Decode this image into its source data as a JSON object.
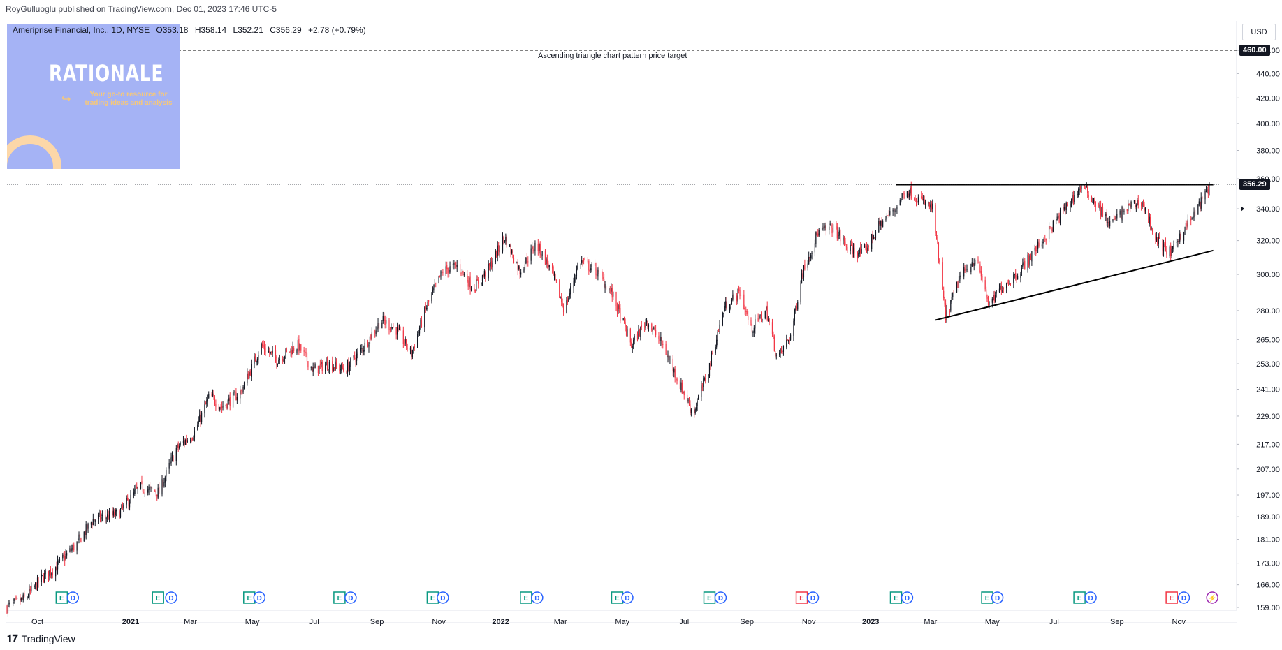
{
  "header": {
    "published_line": "RoyGulluoglu published on TradingView.com, Dec 01, 2023 17:46 UTC-5"
  },
  "legend": {
    "symbol": "Ameriprise Financial, Inc., 1D, NYSE",
    "open": "O353.18",
    "high": "H358.14",
    "low": "L352.21",
    "close": "C356.29",
    "change": "+2.78 (+0.79%)"
  },
  "logo": {
    "title": "RATIONALE",
    "tagline": "Your go-to resource for trading ideas and analysis",
    "colors": {
      "background": "#a5b3f5",
      "accent": "#f6c87a"
    }
  },
  "currency": "USD",
  "annotations": {
    "target_text": "Ascending triangle chart pattern price target",
    "target_price": "460.00",
    "last_price": "356.29"
  },
  "footer": {
    "brand": "TradingView"
  },
  "colors": {
    "up": "#131722",
    "down": "#f23645",
    "earnings": "#089981",
    "earnings_neg": "#f23645",
    "dividend": "#2962ff",
    "split": "#9c27b0"
  },
  "chart_data": {
    "type": "candlestick",
    "scale": "log",
    "ylim": [
      159,
      480
    ],
    "y_ticks": [
      "460.00",
      "440.00",
      "420.00",
      "400.00",
      "380.00",
      "360.00",
      "340.00",
      "320.00",
      "300.00",
      "280.00",
      "265.00",
      "253.00",
      "241.00",
      "229.00",
      "217.00",
      "207.00",
      "197.00",
      "189.00",
      "181.00",
      "173.00",
      "166.00",
      "159.00"
    ],
    "x_ticks": [
      {
        "label": "Oct",
        "date": "2020-10-01",
        "bold": false
      },
      {
        "label": "2021",
        "date": "2021-01-01",
        "bold": true
      },
      {
        "label": "Mar",
        "date": "2021-03-01",
        "bold": false
      },
      {
        "label": "May",
        "date": "2021-05-01",
        "bold": false
      },
      {
        "label": "Jul",
        "date": "2021-07-01",
        "bold": false
      },
      {
        "label": "Sep",
        "date": "2021-09-01",
        "bold": false
      },
      {
        "label": "Nov",
        "date": "2021-11-01",
        "bold": false
      },
      {
        "label": "2022",
        "date": "2022-01-01",
        "bold": true
      },
      {
        "label": "Mar",
        "date": "2022-03-01",
        "bold": false
      },
      {
        "label": "May",
        "date": "2022-05-01",
        "bold": false
      },
      {
        "label": "Jul",
        "date": "2022-07-01",
        "bold": false
      },
      {
        "label": "Sep",
        "date": "2022-09-01",
        "bold": false
      },
      {
        "label": "Nov",
        "date": "2022-11-01",
        "bold": false
      },
      {
        "label": "2023",
        "date": "2023-01-01",
        "bold": true
      },
      {
        "label": "Mar",
        "date": "2023-03-01",
        "bold": false
      },
      {
        "label": "May",
        "date": "2023-05-01",
        "bold": false
      },
      {
        "label": "Jul",
        "date": "2023-07-01",
        "bold": false
      },
      {
        "label": "Sep",
        "date": "2023-09-01",
        "bold": false
      },
      {
        "label": "Nov",
        "date": "2023-11-01",
        "bold": false
      }
    ],
    "price_path": [
      [
        "2020-09-01",
        159
      ],
      [
        "2020-09-20",
        162
      ],
      [
        "2020-10-05",
        168
      ],
      [
        "2020-10-20",
        172
      ],
      [
        "2020-11-10",
        180
      ],
      [
        "2020-11-25",
        188
      ],
      [
        "2020-12-20",
        190
      ],
      [
        "2021-01-10",
        200
      ],
      [
        "2021-01-29",
        198
      ],
      [
        "2021-02-15",
        215
      ],
      [
        "2021-03-05",
        222
      ],
      [
        "2021-03-20",
        238
      ],
      [
        "2021-04-01",
        233
      ],
      [
        "2021-04-20",
        240
      ],
      [
        "2021-05-10",
        262
      ],
      [
        "2021-05-25",
        255
      ],
      [
        "2021-06-15",
        262
      ],
      [
        "2021-06-30",
        250
      ],
      [
        "2021-07-15",
        253
      ],
      [
        "2021-08-01",
        250
      ],
      [
        "2021-08-20",
        262
      ],
      [
        "2021-09-05",
        275
      ],
      [
        "2021-09-20",
        270
      ],
      [
        "2021-10-05",
        258
      ],
      [
        "2021-10-20",
        282
      ],
      [
        "2021-11-05",
        302
      ],
      [
        "2021-11-20",
        305
      ],
      [
        "2021-12-05",
        292
      ],
      [
        "2021-12-20",
        303
      ],
      [
        "2022-01-05",
        322
      ],
      [
        "2022-01-20",
        302
      ],
      [
        "2022-02-05",
        318
      ],
      [
        "2022-02-20",
        302
      ],
      [
        "2022-03-05",
        280
      ],
      [
        "2022-03-20",
        308
      ],
      [
        "2022-04-05",
        302
      ],
      [
        "2022-04-20",
        290
      ],
      [
        "2022-05-10",
        262
      ],
      [
        "2022-05-25",
        275
      ],
      [
        "2022-06-10",
        262
      ],
      [
        "2022-06-25",
        245
      ],
      [
        "2022-07-10",
        230
      ],
      [
        "2022-07-25",
        250
      ],
      [
        "2022-08-10",
        282
      ],
      [
        "2022-08-25",
        290
      ],
      [
        "2022-09-05",
        270
      ],
      [
        "2022-09-20",
        280
      ],
      [
        "2022-10-01",
        255
      ],
      [
        "2022-10-15",
        268
      ],
      [
        "2022-10-25",
        300
      ],
      [
        "2022-11-10",
        325
      ],
      [
        "2022-11-25",
        328
      ],
      [
        "2022-12-10",
        315
      ],
      [
        "2022-12-25",
        312
      ],
      [
        "2023-01-10",
        330
      ],
      [
        "2023-01-25",
        340
      ],
      [
        "2023-02-05",
        353
      ],
      [
        "2023-02-20",
        345
      ],
      [
        "2023-03-03",
        340
      ],
      [
        "2023-03-10",
        305
      ],
      [
        "2023-03-16",
        276
      ],
      [
        "2023-03-30",
        298
      ],
      [
        "2023-04-15",
        310
      ],
      [
        "2023-04-28",
        282
      ],
      [
        "2023-05-10",
        293
      ],
      [
        "2023-05-25",
        300
      ],
      [
        "2023-06-10",
        312
      ],
      [
        "2023-06-25",
        325
      ],
      [
        "2023-07-15",
        343
      ],
      [
        "2023-07-28",
        355
      ],
      [
        "2023-08-10",
        345
      ],
      [
        "2023-08-25",
        330
      ],
      [
        "2023-09-10",
        340
      ],
      [
        "2023-09-25",
        345
      ],
      [
        "2023-10-10",
        320
      ],
      [
        "2023-10-25",
        312
      ],
      [
        "2023-11-01",
        322
      ],
      [
        "2023-11-15",
        335
      ],
      [
        "2023-11-30",
        353
      ],
      [
        "2023-12-01",
        356.29
      ]
    ],
    "lines": [
      {
        "name": "resistance",
        "from": [
          "2023-01-26",
          356
        ],
        "to": [
          "2023-12-05",
          356
        ]
      },
      {
        "name": "support",
        "from": [
          "2023-03-06",
          275
        ],
        "to": [
          "2023-12-05",
          314
        ]
      },
      {
        "name": "target",
        "from": [
          "2020-09-01",
          460
        ],
        "to": [
          "2023-12-28",
          460
        ],
        "dashed": true
      }
    ],
    "events": [
      {
        "type": "E",
        "date": "2020-10-25",
        "kind": "earnings"
      },
      {
        "type": "D",
        "date": "2020-11-05",
        "kind": "dividend"
      },
      {
        "type": "E",
        "date": "2021-01-28",
        "kind": "earnings"
      },
      {
        "type": "D",
        "date": "2021-02-10",
        "kind": "dividend"
      },
      {
        "type": "E",
        "date": "2021-04-28",
        "kind": "earnings"
      },
      {
        "type": "D",
        "date": "2021-05-08",
        "kind": "dividend"
      },
      {
        "type": "E",
        "date": "2021-07-26",
        "kind": "earnings"
      },
      {
        "type": "D",
        "date": "2021-08-06",
        "kind": "dividend"
      },
      {
        "type": "E",
        "date": "2021-10-26",
        "kind": "earnings"
      },
      {
        "type": "D",
        "date": "2021-11-05",
        "kind": "dividend"
      },
      {
        "type": "E",
        "date": "2022-01-26",
        "kind": "earnings"
      },
      {
        "type": "D",
        "date": "2022-02-06",
        "kind": "dividend"
      },
      {
        "type": "E",
        "date": "2022-04-26",
        "kind": "earnings"
      },
      {
        "type": "D",
        "date": "2022-05-06",
        "kind": "dividend"
      },
      {
        "type": "E",
        "date": "2022-07-26",
        "kind": "earnings"
      },
      {
        "type": "D",
        "date": "2022-08-06",
        "kind": "dividend"
      },
      {
        "type": "E",
        "date": "2022-10-25",
        "kind": "earnings_neg"
      },
      {
        "type": "D",
        "date": "2022-11-05",
        "kind": "dividend"
      },
      {
        "type": "E",
        "date": "2023-01-26",
        "kind": "earnings"
      },
      {
        "type": "D",
        "date": "2023-02-06",
        "kind": "dividend"
      },
      {
        "type": "E",
        "date": "2023-04-26",
        "kind": "earnings"
      },
      {
        "type": "D",
        "date": "2023-05-06",
        "kind": "dividend"
      },
      {
        "type": "E",
        "date": "2023-07-26",
        "kind": "earnings"
      },
      {
        "type": "D",
        "date": "2023-08-06",
        "kind": "dividend"
      },
      {
        "type": "E",
        "date": "2023-10-25",
        "kind": "earnings_neg"
      },
      {
        "type": "D",
        "date": "2023-11-06",
        "kind": "dividend"
      },
      {
        "type": "⚡",
        "date": "2023-12-04",
        "kind": "split"
      }
    ]
  }
}
